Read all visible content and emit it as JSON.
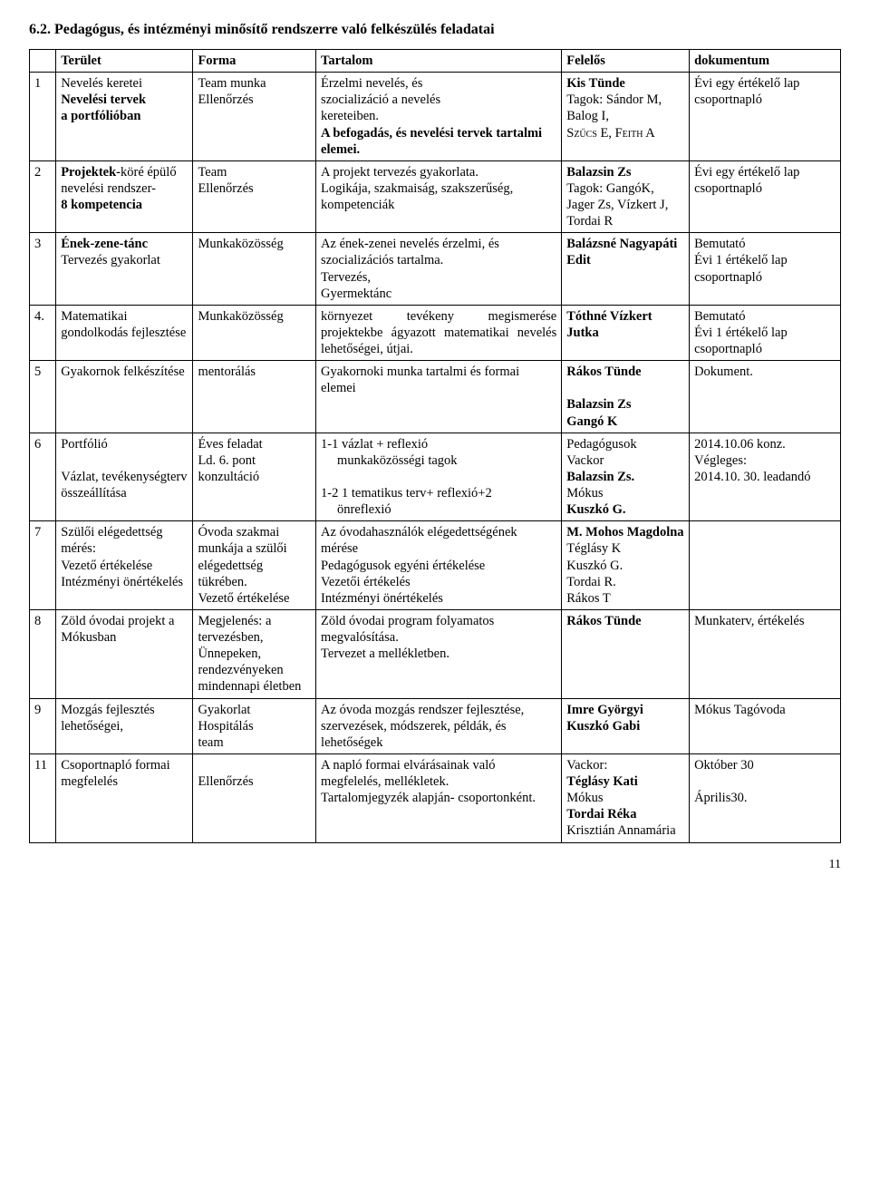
{
  "heading": "6.2. Pedagógus, és intézményi minősítő rendszerre való felkészülés feladatai",
  "headers": {
    "terulet": "Terület",
    "forma": "Forma",
    "tartalom": "Tartalom",
    "felelos": "Felelős",
    "dokumentum": "dokumentum"
  },
  "rows": [
    {
      "n": "1",
      "terulet": [
        {
          "t": "Nevelés keretei",
          "b": false
        },
        {
          "t": "Nevelési tervek",
          "b": true
        },
        {
          "t": "a portfólióban",
          "b": true
        }
      ],
      "forma": [
        {
          "t": "Team munka",
          "b": false
        },
        {
          "t": "Ellenőrzés",
          "b": false
        }
      ],
      "tartalom": [
        {
          "t": "Érzelmi nevelés, és",
          "b": false
        },
        {
          "t": "szocializáció a nevelés",
          "b": false
        },
        {
          "t": "kereteiben.",
          "b": false
        },
        {
          "t": "A befogadás, és nevelési tervek tartalmi elemei.",
          "b": true
        }
      ],
      "felelos": [
        {
          "t": "Kis Tünde",
          "b": true
        },
        {
          "t": "Tagok: Sándor M, Balog I,",
          "b": false
        },
        {
          "t": "Szűcs E, Feith A",
          "b": false,
          "sc": true
        }
      ],
      "dok": [
        {
          "t": "Évi egy értékelő lap",
          "b": false
        },
        {
          "t": "csoportnapló",
          "b": false
        }
      ]
    },
    {
      "n": "2",
      "terulet": [
        {
          "t": "Projektek-",
          "b": true,
          "inline": true
        },
        {
          "t": "köré épülő nevelési rendszer-",
          "b": false
        },
        {
          "t": "8 kompetencia",
          "b": true
        }
      ],
      "forma": [
        {
          "t": "Team",
          "b": false
        },
        {
          "t": "Ellenőrzés",
          "b": false
        }
      ],
      "tartalom": [
        {
          "t": "A projekt tervezés gyakorlata.",
          "b": false
        },
        {
          "t": "Logikája, szakmaiság, szakszerűség, kompetenciák",
          "b": false
        }
      ],
      "felelos": [
        {
          "t": "Balazsin Zs",
          "b": true
        },
        {
          "t": "Tagok: GangóK, Jager Zs, Vízkert J, Tordai R",
          "b": false
        }
      ],
      "dok": [
        {
          "t": "Évi egy értékelő lap",
          "b": false
        },
        {
          "t": "csoportnapló",
          "b": false
        }
      ]
    },
    {
      "n": "3",
      "terulet": [
        {
          "t": "Ének-zene-tánc",
          "b": true
        },
        {
          "t": "Tervezés gyakorlat",
          "b": false
        }
      ],
      "forma": [
        {
          "t": "Munkaközösség",
          "b": false
        }
      ],
      "tartalom": [
        {
          "t": "Az ének-zenei nevelés érzelmi, és szocializációs tartalma.",
          "b": false
        },
        {
          "t": "Tervezés,",
          "b": false
        },
        {
          "t": "Gyermektánc",
          "b": false
        }
      ],
      "felelos": [
        {
          "t": "Balázsné Nagyapáti Edit",
          "b": true
        }
      ],
      "dok": [
        {
          "t": "Bemutató",
          "b": false
        },
        {
          "t": "Évi 1 értékelő lap",
          "b": false
        },
        {
          "t": "csoportnapló",
          "b": false
        }
      ]
    },
    {
      "n": "4.",
      "terulet": [
        {
          "t": "Matematikai gondolkodás fejlesztése",
          "b": false
        }
      ],
      "forma": [
        {
          "t": "Munkaközösség",
          "b": false
        }
      ],
      "tartalom": [
        {
          "t": "környezet tevékeny megismerése projektekbe ágyazott matematikai nevelés lehetőségei, útjai.",
          "b": false,
          "justify": true
        }
      ],
      "felelos": [
        {
          "t": "Tóthné Vízkert Jutka",
          "b": true
        }
      ],
      "dok": [
        {
          "t": "Bemutató",
          "b": false
        },
        {
          "t": "Évi 1 értékelő lap",
          "b": false
        },
        {
          "t": "csoportnapló",
          "b": false
        }
      ]
    },
    {
      "n": "5",
      "terulet": [
        {
          "t": "Gyakornok felkészítése",
          "b": false
        }
      ],
      "forma": [
        {
          "t": "mentorálás",
          "b": false
        }
      ],
      "tartalom": [
        {
          "t": "Gyakornoki munka tartalmi és formai elemei",
          "b": false
        }
      ],
      "felelos": [
        {
          "t": "Rákos Tünde",
          "b": true
        },
        {
          "t": "",
          "b": false
        },
        {
          "t": "Balazsin Zs",
          "b": true
        },
        {
          "t": "Gangó K",
          "b": true
        }
      ],
      "dok": [
        {
          "t": "Dokument.",
          "b": false
        }
      ]
    },
    {
      "n": "6",
      "terulet": [
        {
          "t": "Portfólió",
          "b": false
        },
        {
          "t": "",
          "b": false
        },
        {
          "t": "Vázlat, tevékenységterv összeállítása",
          "b": false
        }
      ],
      "forma": [
        {
          "t": "Éves feladat",
          "b": false
        },
        {
          "t": "Ld. 6. pont",
          "b": false
        },
        {
          "t": "konzultáció",
          "b": false
        }
      ],
      "tartalom": [
        {
          "t": "1-1 vázlat + reflexió",
          "b": false
        },
        {
          "t": "munkaközösségi tagok",
          "b": false,
          "indent": true
        },
        {
          "t": "1-2 1 tematikus terv+ reflexió+2",
          "b": false
        },
        {
          "t": "önreflexió",
          "b": false,
          "indent": true
        }
      ],
      "felelos": [
        {
          "t": "Pedagógusok",
          "b": false
        },
        {
          "t": "Vackor",
          "b": false
        },
        {
          "t": "Balazsin Zs.",
          "b": true
        },
        {
          "t": "Mókus",
          "b": false
        },
        {
          "t": "Kuszkó G.",
          "b": true
        }
      ],
      "dok": [
        {
          "t": "2014.10.06 konz.",
          "b": false
        },
        {
          "t": "Végleges:",
          "b": false
        },
        {
          "t": "2014.10. 30. leadandó",
          "b": false
        }
      ]
    },
    {
      "n": "7",
      "terulet": [
        {
          "t": "Szülői elégedettség mérés:",
          "b": false
        },
        {
          "t": "Vezető értékelése",
          "b": false
        },
        {
          "t": "Intézményi önértékelés",
          "b": false
        }
      ],
      "forma": [
        {
          "t": "Óvoda szakmai munkája a szülői elégedettség tükrében.",
          "b": false
        },
        {
          "t": "Vezető értékelése",
          "b": false
        }
      ],
      "tartalom": [
        {
          "t": "Az óvodahasználók elégedettségének mérése",
          "b": false
        },
        {
          "t": "Pedagógusok egyéni értékelése",
          "b": false
        },
        {
          "t": "Vezetői értékelés",
          "b": false
        },
        {
          "t": "Intézményi önértékelés",
          "b": false
        }
      ],
      "felelos": [
        {
          "t": "M. Mohos Magdolna",
          "b": true
        },
        {
          "t": "Téglásy K",
          "b": false
        },
        {
          "t": "Kuszkó G.",
          "b": false
        },
        {
          "t": "Tordai R.",
          "b": false
        },
        {
          "t": "Rákos T",
          "b": false
        }
      ],
      "dok": []
    },
    {
      "n": "8",
      "terulet": [
        {
          "t": "Zöld óvodai projekt a Mókusban",
          "b": false
        }
      ],
      "forma": [
        {
          "t": "Megjelenés: a tervezésben, Ünnepeken, rendezvényeken mindennapi életben",
          "b": false
        }
      ],
      "tartalom": [
        {
          "t": "Zöld óvodai program folyamatos megvalósítása.",
          "b": false
        },
        {
          "t": "Tervezet a mellékletben.",
          "b": false
        }
      ],
      "felelos": [
        {
          "t": "Rákos Tünde",
          "b": true
        }
      ],
      "dok": [
        {
          "t": "Munkaterv, értékelés",
          "b": false
        }
      ]
    },
    {
      "n": "9",
      "terulet": [
        {
          "t": "Mozgás fejlesztés lehetőségei,",
          "b": false
        }
      ],
      "forma": [
        {
          "t": "Gyakorlat",
          "b": false
        },
        {
          "t": "Hospitálás",
          "b": false
        },
        {
          "t": "team",
          "b": false
        }
      ],
      "tartalom": [
        {
          "t": "Az óvoda mozgás rendszer fejlesztése, szervezések, módszerek, példák, és lehetőségek",
          "b": false
        }
      ],
      "felelos": [
        {
          "t": "Imre Györgyi",
          "b": true
        },
        {
          "t": "Kuszkó Gabi",
          "b": true
        }
      ],
      "dok": [
        {
          "t": "Mókus Tagóvoda",
          "b": false
        }
      ]
    },
    {
      "n": "11",
      "terulet": [
        {
          "t": "Csoportnapló formai megfelelés",
          "b": false
        }
      ],
      "forma": [
        {
          "t": "",
          "b": false
        },
        {
          "t": "Ellenőrzés",
          "b": false
        }
      ],
      "tartalom": [
        {
          "t": "A napló formai elvárásainak való megfelelés, mellékletek.",
          "b": false
        },
        {
          "t": "Tartalomjegyzék alapján- csoportonként.",
          "b": false
        }
      ],
      "felelos": [
        {
          "t": "Vackor:",
          "b": false
        },
        {
          "t": "Téglásy Kati",
          "b": true
        },
        {
          "t": "Mókus",
          "b": false
        },
        {
          "t": "Tordai Réka",
          "b": true
        },
        {
          "t": "Krisztián Annamária",
          "b": false
        }
      ],
      "dok": [
        {
          "t": "Október 30",
          "b": false
        },
        {
          "t": "",
          "b": false
        },
        {
          "t": "Április30.",
          "b": false
        }
      ]
    }
  ],
  "pageNumber": "11"
}
